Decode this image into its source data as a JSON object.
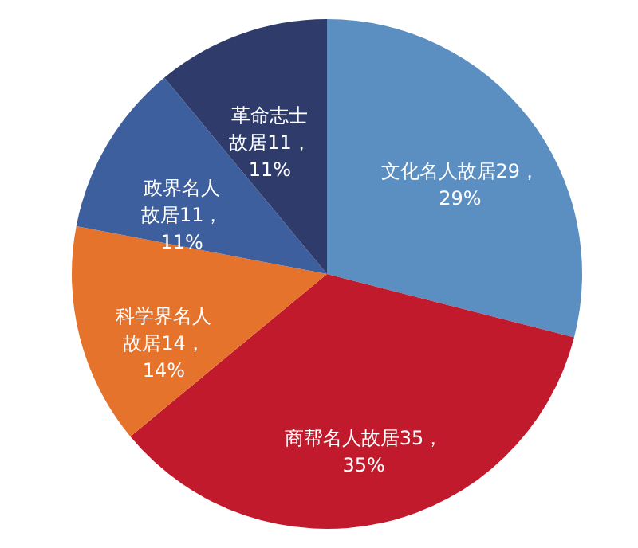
{
  "chart_data": {
    "type": "pie",
    "categories": [
      "文化名人故居",
      "商帮名人故居",
      "科学界名人故居",
      "政界名人故居",
      "革命志士故居"
    ],
    "values": [
      29,
      35,
      14,
      11,
      11
    ],
    "colors": [
      "#5b8ec1",
      "#c01a2c",
      "#e5732b",
      "#3e5f9d",
      "#2e3b6b"
    ],
    "value_labels": [
      "29，29%",
      "35，35%",
      "14，14%",
      "11，11%",
      "11，11%"
    ],
    "legend": false
  }
}
